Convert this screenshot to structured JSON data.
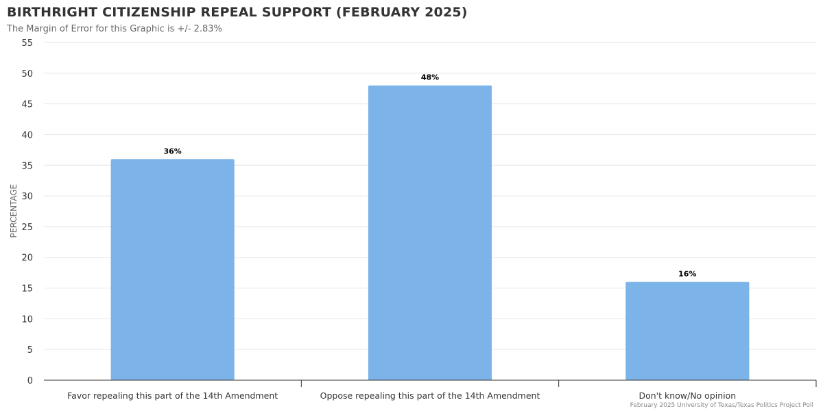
{
  "chart_data": {
    "type": "bar",
    "title": "BIRTHRIGHT CITIZENSHIP REPEAL SUPPORT (FEBRUARY 2025)",
    "subtitle": "The Margin of Error for this Graphic is +/- 2.83%",
    "ylabel": "PERCENTAGE",
    "xlabel": "",
    "categories": [
      "Favor repealing this part of the 14th Amendment",
      "Oppose repealing this part of the 14th Amendment",
      "Don't know/No opinion"
    ],
    "values": [
      36,
      48,
      16
    ],
    "data_labels": [
      "36%",
      "48%",
      "16%"
    ],
    "ylim": [
      0,
      55
    ],
    "yticks": [
      0,
      5,
      10,
      15,
      20,
      25,
      30,
      35,
      40,
      45,
      50,
      55
    ],
    "grid": true,
    "bar_color": "#7cb4ea",
    "credit": "February 2025 University of Texas/Texas Politics Project Poll"
  }
}
